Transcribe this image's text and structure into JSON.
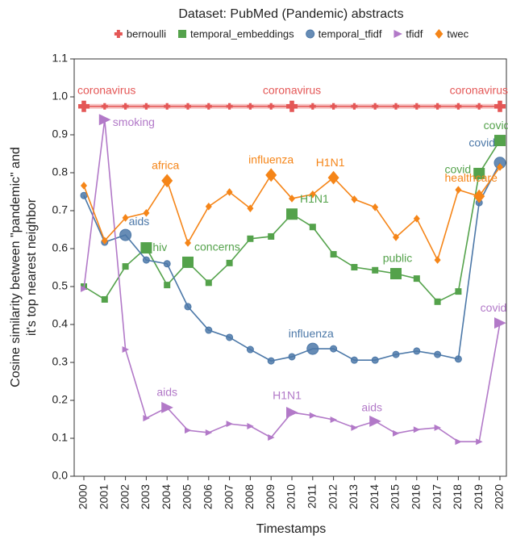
{
  "chart_data": {
    "type": "line",
    "title": "Dataset: PubMed (Pandemic) abstracts",
    "x_label": "Timestamps",
    "y_label": [
      "Cosine similarity between \"pandemic\" and",
      "it's top nearest neighbor"
    ],
    "categories": [
      "2000",
      "2001",
      "2002",
      "2003",
      "2004",
      "2005",
      "2006",
      "2007",
      "2008",
      "2009",
      "2010",
      "2011",
      "2012",
      "2013",
      "2014",
      "2015",
      "2016",
      "2017",
      "2018",
      "2019",
      "2020"
    ],
    "ylim": [
      0,
      1.1
    ],
    "yticks": [
      {
        "value": 0,
        "label": "0.0"
      },
      {
        "value": 0.1,
        "label": "0.1"
      },
      {
        "value": 0.2,
        "label": "0.2"
      },
      {
        "value": 0.3,
        "label": "0.3"
      },
      {
        "value": 0.4,
        "label": "0.4"
      },
      {
        "value": 0.5,
        "label": "0.5"
      },
      {
        "value": 0.6,
        "label": "0.6"
      },
      {
        "value": 0.7,
        "label": "0.7"
      },
      {
        "value": 0.8,
        "label": "0.8"
      },
      {
        "value": 0.9,
        "label": "0.9"
      },
      {
        "value": 1.0,
        "label": "1.0"
      },
      {
        "value": 1.1,
        "label": "1.1"
      }
    ],
    "series": [
      {
        "name": "bernoulli",
        "color": "#e45756",
        "marker": "plus",
        "values": [
          0.975,
          0.975,
          0.975,
          0.975,
          0.975,
          0.975,
          0.975,
          0.975,
          0.975,
          0.975,
          0.975,
          0.975,
          0.975,
          0.975,
          0.975,
          0.975,
          0.975,
          0.975,
          0.975,
          0.975,
          0.975
        ],
        "point_labels": [
          "coronavirus",
          null,
          null,
          null,
          null,
          null,
          null,
          null,
          null,
          null,
          "coronavirus",
          null,
          null,
          null,
          null,
          null,
          null,
          null,
          null,
          null,
          "coronavirus"
        ]
      },
      {
        "name": "temporal_embeddings",
        "color": "#54a24b",
        "marker": "square",
        "values": [
          0.5,
          0.466,
          0.553,
          0.602,
          0.504,
          0.564,
          0.51,
          0.562,
          0.626,
          0.632,
          0.691,
          0.657,
          0.585,
          0.551,
          0.543,
          0.534,
          0.521,
          0.46,
          0.487,
          0.798,
          0.885
        ],
        "point_labels": [
          null,
          null,
          null,
          "hiv",
          null,
          "concerns",
          null,
          null,
          null,
          null,
          "H1N1",
          null,
          null,
          null,
          null,
          "public",
          null,
          null,
          null,
          "covid",
          "covid"
        ]
      },
      {
        "name": "temporal_tfidf",
        "color": "#4c78a8",
        "marker": "circle",
        "values": [
          0.74,
          0.617,
          0.636,
          0.57,
          0.56,
          0.447,
          0.385,
          0.366,
          0.334,
          0.304,
          0.315,
          0.336,
          0.336,
          0.306,
          0.306,
          0.321,
          0.33,
          0.321,
          0.309,
          0.721,
          0.826
        ],
        "point_labels": [
          null,
          null,
          "aids",
          null,
          null,
          null,
          null,
          null,
          null,
          null,
          null,
          "influenza",
          null,
          null,
          null,
          null,
          null,
          null,
          null,
          null,
          "covid"
        ]
      },
      {
        "name": "tfidf",
        "color": "#b279c8",
        "marker": "triangle",
        "values": [
          0.494,
          0.94,
          0.334,
          0.153,
          0.181,
          0.121,
          0.115,
          0.138,
          0.132,
          0.102,
          0.168,
          0.16,
          0.149,
          0.128,
          0.145,
          0.113,
          0.123,
          0.128,
          0.091,
          0.091,
          0.404
        ],
        "point_labels": [
          null,
          "smoking",
          null,
          null,
          "aids",
          null,
          null,
          null,
          null,
          null,
          "H1N1",
          null,
          null,
          null,
          "aids",
          null,
          null,
          null,
          null,
          null,
          "covid"
        ]
      },
      {
        "name": "twec",
        "color": "#f58518",
        "marker": "diamond",
        "values": [
          0.766,
          0.621,
          0.681,
          0.694,
          0.779,
          0.615,
          0.711,
          0.749,
          0.706,
          0.794,
          0.732,
          0.743,
          0.787,
          0.73,
          0.709,
          0.63,
          0.679,
          0.57,
          0.755,
          0.738,
          0.815
        ],
        "point_labels": [
          null,
          null,
          null,
          null,
          "africa",
          null,
          null,
          null,
          null,
          "influenza",
          null,
          null,
          "H1N1",
          null,
          null,
          null,
          null,
          null,
          null,
          "healthcare",
          null
        ]
      }
    ]
  }
}
